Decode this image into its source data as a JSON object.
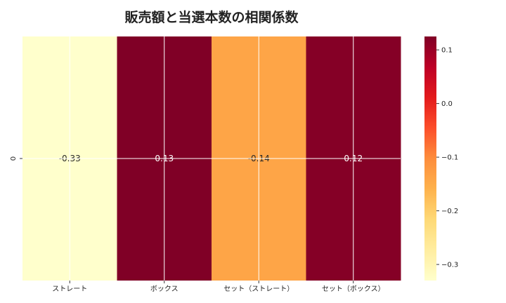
{
  "chart_data": {
    "type": "heatmap",
    "title": "販売額と当選本数の相関係数",
    "x_categories": [
      "ストレート",
      "ボックス",
      "セット（ストレート）",
      "セット（ボックス）"
    ],
    "y_categories": [
      "0"
    ],
    "values": [
      [
        -0.33,
        0.13,
        -0.14,
        0.12
      ]
    ],
    "value_labels": [
      "-0.33",
      "0.13",
      "-0.14",
      "0.12"
    ],
    "colorbar": {
      "range": [
        -0.33,
        0.125
      ],
      "ticks": [
        0.1,
        0.0,
        -0.1,
        -0.2,
        -0.3
      ],
      "tick_labels": [
        "0.1",
        "0.0",
        "−0.1",
        "−0.2",
        "−0.3"
      ],
      "colormap": "YlOrRd",
      "stops": [
        "#ffffcc",
        "#ffeda0",
        "#fed976",
        "#feb24c",
        "#fd8d3c",
        "#fc4e2a",
        "#e31a1c",
        "#bd0026",
        "#800026"
      ]
    },
    "grid": true
  }
}
